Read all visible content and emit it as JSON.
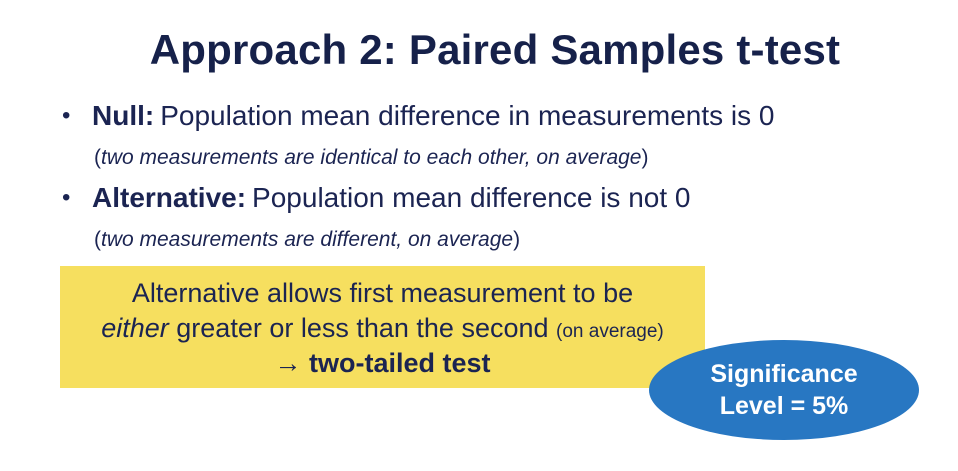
{
  "slide": {
    "title": "Approach 2: Paired Samples t-test"
  },
  "bullets": [
    {
      "marker": "•",
      "term": "Null:",
      "text": "Population mean difference in measurements is 0",
      "note": "two measurements are identical to each other, on average",
      "note_open": "(",
      "note_close": ")"
    },
    {
      "marker": "•",
      "term": "Alternative:",
      "text": "Population mean difference is not 0",
      "note": "two measurements are different, on average",
      "note_open": "(",
      "note_close": ")"
    }
  ],
  "callout": {
    "line1": "Alternative allows first measurement to be",
    "line2_emph": "either",
    "line2_rest": " greater or less than the second ",
    "line2_small": "(on average)",
    "line3_arrow": "→ ",
    "line3_bold": "two-tailed test"
  },
  "badge": {
    "line1": "Significance",
    "line2": "Level = 5%"
  },
  "colors": {
    "title": "#16214a",
    "text": "#1b2452",
    "callout_bg": "#f6df5f",
    "badge_bg": "#2877c2"
  }
}
